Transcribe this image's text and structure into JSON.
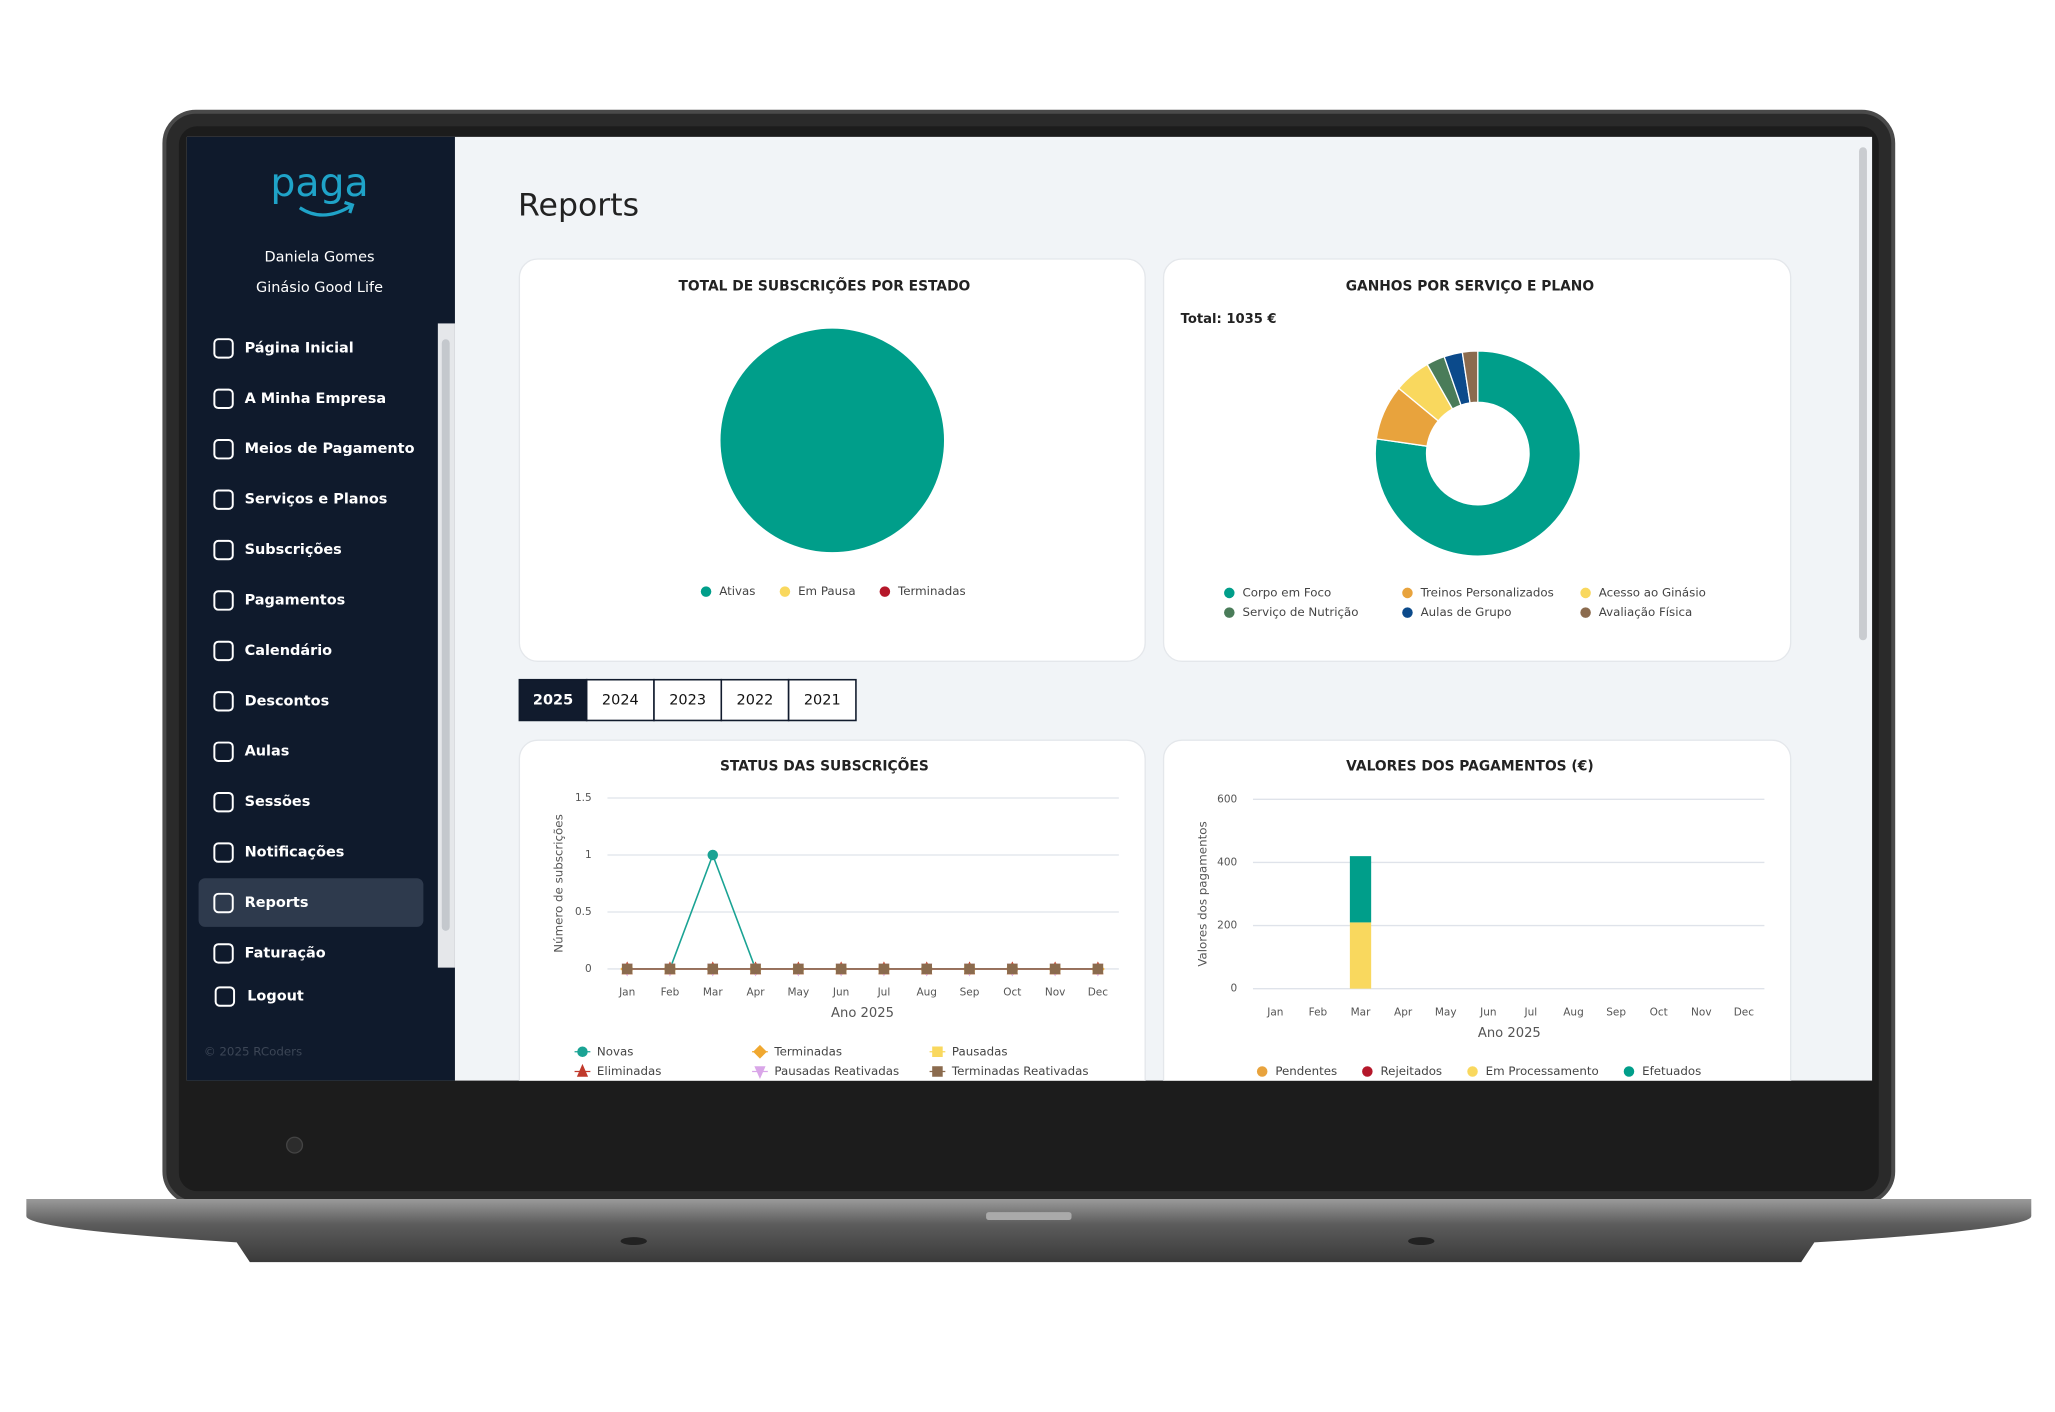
{
  "sidebar": {
    "logo": "paga",
    "user": "Daniela Gomes",
    "company": "Ginásio Good Life",
    "menu": [
      "Página Inicial",
      "A Minha Empresa",
      "Meios de Pagamento",
      "Serviços e Planos",
      "Subscrições",
      "Pagamentos",
      "Calendário",
      "Descontos",
      "Aulas",
      "Sessões",
      "Notificações",
      "Reports",
      "Faturação",
      "Logout"
    ],
    "footer": "© 2025 RCoders"
  },
  "page": {
    "title": "Reports",
    "year_tabs": [
      "2025",
      "2024",
      "2023",
      "2022",
      "2021"
    ]
  },
  "chart_data": [
    {
      "type": "pie",
      "title": "TOTAL DE SUBSCRIÇÕES POR ESTADO",
      "categories": [
        "Ativas",
        "Em Pausa",
        "Terminadas"
      ],
      "values": [
        1,
        0,
        0
      ],
      "colors": [
        "#009e8a",
        "#f9d85e",
        "#b5172a"
      ]
    },
    {
      "type": "doughnut",
      "title": "GANHOS POR SERVIÇO E PLANO",
      "subtitle": "Total: 1035 €",
      "categories": [
        "Corpo em Foco",
        "Treinos Personalizados",
        "Acesso ao Ginásio",
        "Serviço de Nutrição",
        "Aulas de Grupo",
        "Avaliação Física"
      ],
      "values": [
        800,
        90,
        60,
        30,
        30,
        25
      ],
      "colors": [
        "#009e8a",
        "#e8a33d",
        "#f9d85e",
        "#4a7c59",
        "#0b4a8b",
        "#8b6b4e"
      ]
    },
    {
      "type": "line",
      "title": "STATUS DAS SUBSCRIÇÕES",
      "x_label": "Ano 2025",
      "y_label": "Número de subscrições",
      "categories": [
        "Jan",
        "Feb",
        "Mar",
        "Apr",
        "May",
        "Jun",
        "Jul",
        "Aug",
        "Sep",
        "Oct",
        "Nov",
        "Dec"
      ],
      "ylim": [
        0,
        1.5
      ],
      "yticks": [
        0,
        0.5,
        1,
        1.5
      ],
      "grid": true,
      "series": [
        {
          "name": "Novas",
          "color": "#1aa394",
          "values": [
            0,
            0,
            1,
            0,
            0,
            0,
            0,
            0,
            0,
            0,
            0,
            0
          ]
        },
        {
          "name": "Terminadas",
          "color": "#f0a830",
          "values": [
            0,
            0,
            0,
            0,
            0,
            0,
            0,
            0,
            0,
            0,
            0,
            0
          ]
        },
        {
          "name": "Pausadas",
          "color": "#f9d85e",
          "values": [
            0,
            0,
            0,
            0,
            0,
            0,
            0,
            0,
            0,
            0,
            0,
            0
          ]
        },
        {
          "name": "Eliminadas",
          "color": "#c0392b",
          "values": [
            0,
            0,
            0,
            0,
            0,
            0,
            0,
            0,
            0,
            0,
            0,
            0
          ]
        },
        {
          "name": "Pausadas Reativadas",
          "color": "#d9a6e8",
          "values": [
            0,
            0,
            0,
            0,
            0,
            0,
            0,
            0,
            0,
            0,
            0,
            0
          ]
        },
        {
          "name": "Terminadas Reativadas",
          "color": "#8b6b4e",
          "values": [
            0,
            0,
            0,
            0,
            0,
            0,
            0,
            0,
            0,
            0,
            0,
            0
          ]
        }
      ]
    },
    {
      "type": "bar",
      "stacked": true,
      "title": "VALORES DOS PAGAMENTOS (€)",
      "x_label": "Ano 2025",
      "y_label": "Valores dos pagamentos",
      "categories": [
        "Jan",
        "Feb",
        "Mar",
        "Apr",
        "May",
        "Jun",
        "Jul",
        "Aug",
        "Sep",
        "Oct",
        "Nov",
        "Dec"
      ],
      "ylim": [
        0,
        600
      ],
      "yticks": [
        0,
        200,
        400,
        600
      ],
      "grid": true,
      "series": [
        {
          "name": "Pendentes",
          "color": "#e8a33d",
          "values": [
            0,
            0,
            0,
            0,
            0,
            0,
            0,
            0,
            0,
            0,
            0,
            0
          ]
        },
        {
          "name": "Rejeitados",
          "color": "#b5172a",
          "values": [
            0,
            0,
            0,
            0,
            0,
            0,
            0,
            0,
            0,
            0,
            0,
            0
          ]
        },
        {
          "name": "Em Processamento",
          "color": "#f9d85e",
          "values": [
            0,
            0,
            210,
            0,
            0,
            0,
            0,
            0,
            0,
            0,
            0,
            0
          ]
        },
        {
          "name": "Efetuados",
          "color": "#009e8a",
          "values": [
            0,
            0,
            210,
            0,
            0,
            0,
            0,
            0,
            0,
            0,
            0,
            0
          ]
        }
      ]
    }
  ]
}
